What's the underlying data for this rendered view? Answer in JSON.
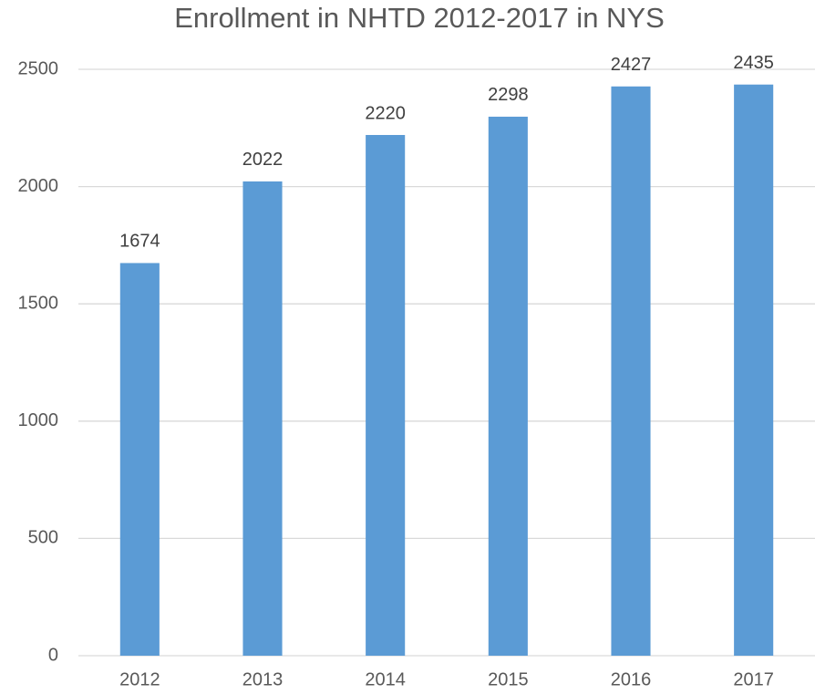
{
  "chart_data": {
    "type": "bar",
    "title": "Enrollment in NHTD 2012-2017 in NYS",
    "categories": [
      "2012",
      "2013",
      "2014",
      "2015",
      "2016",
      "2017"
    ],
    "values": [
      1674,
      2022,
      2220,
      2298,
      2427,
      2435
    ],
    "color": "#5b9bd5",
    "ylim": [
      0,
      2500
    ],
    "yticks": [
      0,
      500,
      1000,
      1500,
      2000,
      2500
    ],
    "grid": true
  }
}
